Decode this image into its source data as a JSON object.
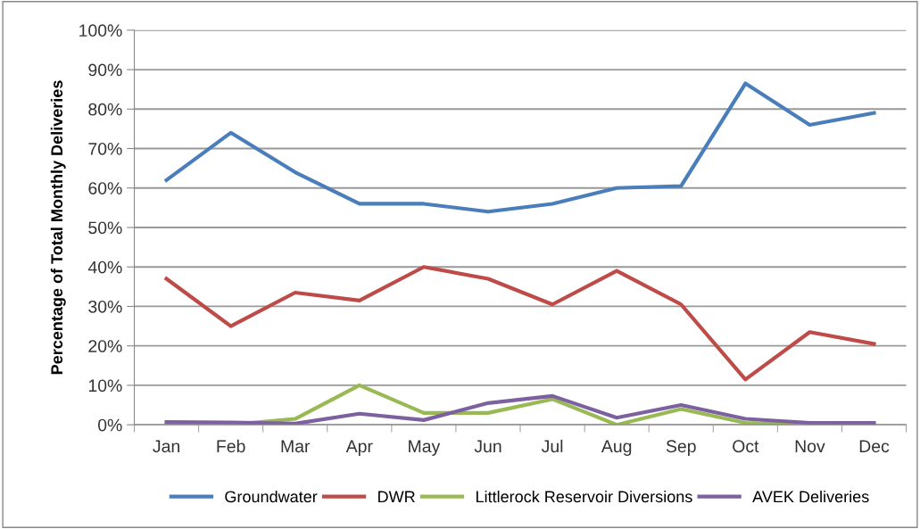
{
  "chart_data": {
    "type": "line",
    "ylabel": "Percentage of Total Monthly Deliveries",
    "categories": [
      "Jan",
      "Feb",
      "Mar",
      "Apr",
      "May",
      "Jun",
      "Jul",
      "Aug",
      "Sep",
      "Oct",
      "Nov",
      "Dec"
    ],
    "series": [
      {
        "name": "Groundwater",
        "color": "#4a7ebb",
        "values": [
          62,
          74,
          64,
          56,
          56,
          54,
          56,
          60,
          60.5,
          86.5,
          76,
          79
        ]
      },
      {
        "name": "DWR",
        "color": "#be4b48",
        "values": [
          37,
          25,
          33.5,
          31.5,
          40,
          37,
          30.5,
          39,
          30.5,
          11.5,
          23.5,
          20.5
        ]
      },
      {
        "name": "Littlerock Reservoir Diversions",
        "color": "#98b954",
        "values": [
          0,
          0,
          1.5,
          10,
          3,
          3,
          6.5,
          0,
          4,
          0.5,
          0,
          0
        ]
      },
      {
        "name": "AVEK Deliveries",
        "color": "#7d60a0",
        "values": [
          0.7,
          0.6,
          0.3,
          2.8,
          1.2,
          5.5,
          7.3,
          1.8,
          5,
          1.5,
          0.5,
          0.5
        ]
      }
    ],
    "ylim": [
      0,
      100
    ],
    "yticks": [
      {
        "value": 0,
        "label": "0%"
      },
      {
        "value": 10,
        "label": "10%"
      },
      {
        "value": 20,
        "label": "20%"
      },
      {
        "value": 30,
        "label": "30%"
      },
      {
        "value": 40,
        "label": "40%"
      },
      {
        "value": 50,
        "label": "50%"
      },
      {
        "value": 60,
        "label": "60%"
      },
      {
        "value": 70,
        "label": "70%"
      },
      {
        "value": 80,
        "label": "80%"
      },
      {
        "value": 90,
        "label": "90%"
      },
      {
        "value": 100,
        "label": "100%"
      }
    ],
    "grid": "y",
    "legend": "bottom",
    "marker": "none",
    "line_style": "solid"
  }
}
